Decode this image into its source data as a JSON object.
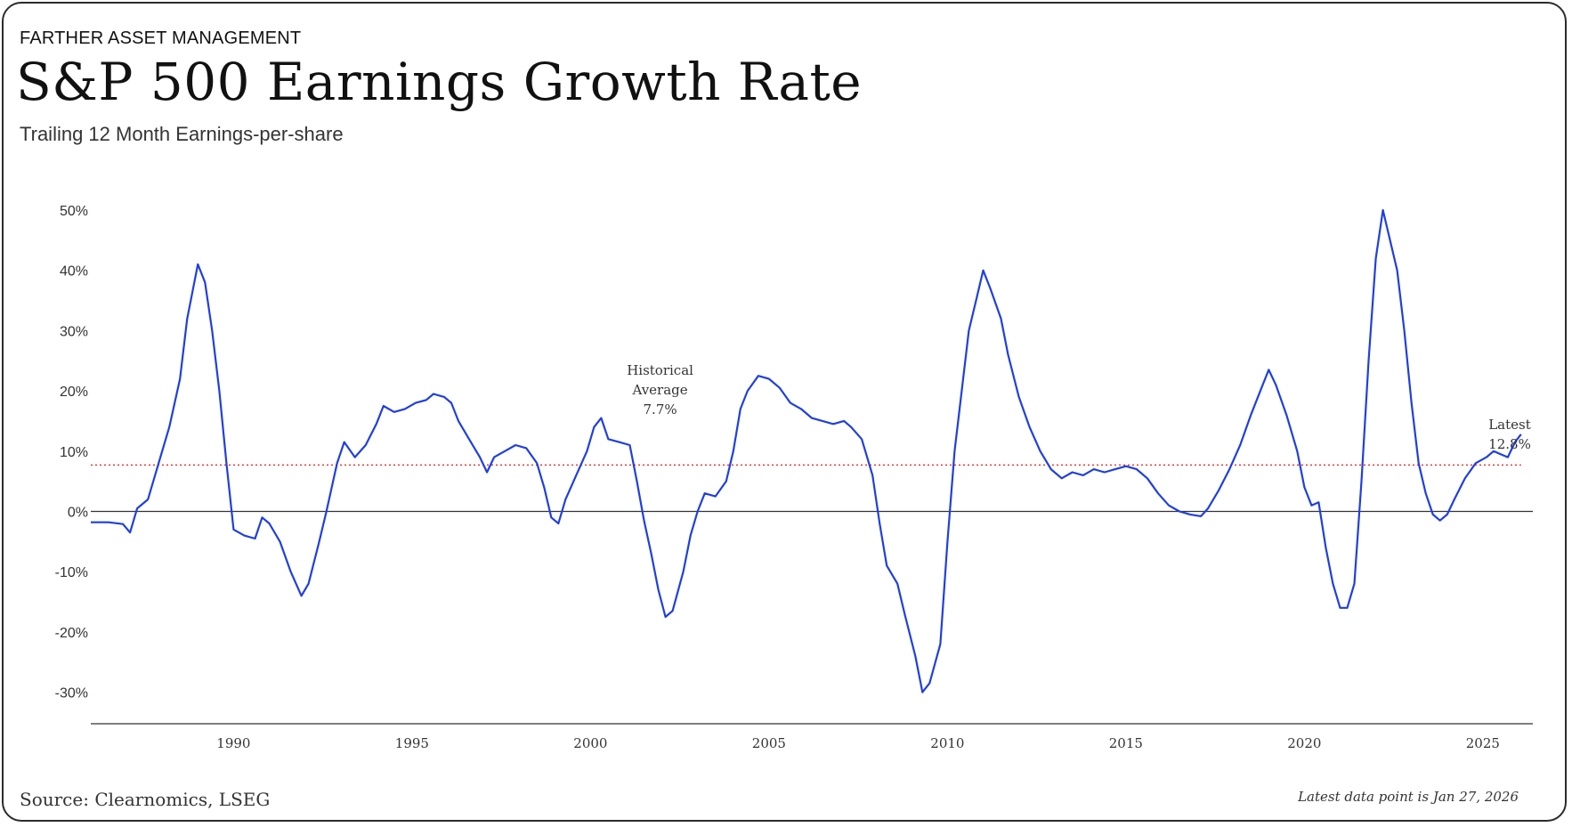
{
  "header": {
    "eyebrow": "FARTHER ASSET MANAGEMENT",
    "title": "S&P 500 Earnings Growth Rate",
    "subtitle": "Trailing 12 Month Earnings-per-share"
  },
  "footer": {
    "source": "Source: Clearnomics, LSEG",
    "latest_note": "Latest data point is Jan 27, 2026"
  },
  "colors": {
    "line": "#1f3fe0",
    "average_line": "#e53935",
    "zero_line": "#333333",
    "axis": "#333333"
  },
  "chart_data": {
    "type": "line",
    "title": "S&P 500 Earnings Growth Rate",
    "subtitle": "Trailing 12 Month Earnings-per-share",
    "xlabel": "",
    "ylabel": "",
    "xlim": [
      1986.0,
      2026.4
    ],
    "ylim": [
      -35,
      52
    ],
    "x_ticks": [
      1990,
      1995,
      2000,
      2005,
      2010,
      2015,
      2020,
      2025
    ],
    "x_tick_labels": [
      "1990",
      "1995",
      "2000",
      "2005",
      "2010",
      "2015",
      "2020",
      "2025"
    ],
    "y_ticks": [
      50,
      40,
      30,
      20,
      10,
      0,
      -10,
      -20,
      -30
    ],
    "y_tick_labels": [
      "50%",
      "40%",
      "30%",
      "20%",
      "10%",
      "0%",
      "-10%",
      "-20%",
      "-30%"
    ],
    "grid": false,
    "series": [
      {
        "name": "Trailing 12M EPS growth",
        "points": [
          [
            1986.0,
            -1.8
          ],
          [
            1986.5,
            -1.8
          ],
          [
            1986.9,
            -2.1
          ],
          [
            1987.1,
            -3.5
          ],
          [
            1987.3,
            0.5
          ],
          [
            1987.6,
            2.0
          ],
          [
            1987.9,
            8.0
          ],
          [
            1988.2,
            14.0
          ],
          [
            1988.5,
            22.0
          ],
          [
            1988.7,
            32.0
          ],
          [
            1988.9,
            38.0
          ],
          [
            1989.0,
            41.0
          ],
          [
            1989.2,
            38.0
          ],
          [
            1989.4,
            30.0
          ],
          [
            1989.6,
            20.0
          ],
          [
            1989.8,
            8.0
          ],
          [
            1990.0,
            -3.0
          ],
          [
            1990.3,
            -4.0
          ],
          [
            1990.6,
            -4.5
          ],
          [
            1990.8,
            -1.0
          ],
          [
            1991.0,
            -2.0
          ],
          [
            1991.3,
            -5.0
          ],
          [
            1991.6,
            -10.0
          ],
          [
            1991.9,
            -14.0
          ],
          [
            1992.1,
            -12.0
          ],
          [
            1992.4,
            -5.0
          ],
          [
            1992.6,
            0.0
          ],
          [
            1992.9,
            8.0
          ],
          [
            1993.1,
            11.5
          ],
          [
            1993.4,
            9.0
          ],
          [
            1993.7,
            11.0
          ],
          [
            1994.0,
            14.5
          ],
          [
            1994.2,
            17.5
          ],
          [
            1994.5,
            16.5
          ],
          [
            1994.8,
            17.0
          ],
          [
            1995.1,
            18.0
          ],
          [
            1995.4,
            18.5
          ],
          [
            1995.6,
            19.5
          ],
          [
            1995.9,
            19.0
          ],
          [
            1996.1,
            18.0
          ],
          [
            1996.3,
            15.0
          ],
          [
            1996.6,
            12.0
          ],
          [
            1996.9,
            9.0
          ],
          [
            1997.1,
            6.5
          ],
          [
            1997.3,
            9.0
          ],
          [
            1997.6,
            10.0
          ],
          [
            1997.9,
            11.0
          ],
          [
            1998.2,
            10.5
          ],
          [
            1998.5,
            8.0
          ],
          [
            1998.7,
            4.0
          ],
          [
            1998.9,
            -1.0
          ],
          [
            1999.1,
            -2.0
          ],
          [
            1999.3,
            2.0
          ],
          [
            1999.6,
            6.0
          ],
          [
            1999.9,
            10.0
          ],
          [
            2000.1,
            14.0
          ],
          [
            2000.3,
            15.5
          ],
          [
            2000.5,
            12.0
          ],
          [
            2000.8,
            11.5
          ],
          [
            2001.1,
            11.0
          ],
          [
            2001.3,
            5.0
          ],
          [
            2001.5,
            -1.5
          ],
          [
            2001.7,
            -7.0
          ],
          [
            2001.9,
            -13.0
          ],
          [
            2002.1,
            -17.5
          ],
          [
            2002.3,
            -16.5
          ],
          [
            2002.6,
            -10.0
          ],
          [
            2002.8,
            -4.0
          ],
          [
            2003.0,
            0.0
          ],
          [
            2003.2,
            3.0
          ],
          [
            2003.5,
            2.5
          ],
          [
            2003.8,
            5.0
          ],
          [
            2004.0,
            10.0
          ],
          [
            2004.2,
            17.0
          ],
          [
            2004.4,
            20.0
          ],
          [
            2004.7,
            22.5
          ],
          [
            2005.0,
            22.0
          ],
          [
            2005.3,
            20.5
          ],
          [
            2005.6,
            18.0
          ],
          [
            2005.9,
            17.0
          ],
          [
            2006.2,
            15.5
          ],
          [
            2006.5,
            15.0
          ],
          [
            2006.8,
            14.5
          ],
          [
            2007.1,
            15.0
          ],
          [
            2007.3,
            14.0
          ],
          [
            2007.6,
            12.0
          ],
          [
            2007.9,
            6.0
          ],
          [
            2008.1,
            -2.0
          ],
          [
            2008.3,
            -9.0
          ],
          [
            2008.6,
            -12.0
          ],
          [
            2008.8,
            -17.0
          ],
          [
            2009.1,
            -24.0
          ],
          [
            2009.3,
            -30.0
          ],
          [
            2009.5,
            -28.5
          ],
          [
            2009.8,
            -22.0
          ],
          [
            2010.0,
            -5.0
          ],
          [
            2010.2,
            10.0
          ],
          [
            2010.4,
            20.0
          ],
          [
            2010.6,
            30.0
          ],
          [
            2010.8,
            35.0
          ],
          [
            2011.0,
            40.0
          ],
          [
            2011.2,
            37.0
          ],
          [
            2011.5,
            32.0
          ],
          [
            2011.7,
            26.0
          ],
          [
            2012.0,
            19.0
          ],
          [
            2012.3,
            14.0
          ],
          [
            2012.6,
            10.0
          ],
          [
            2012.9,
            7.0
          ],
          [
            2013.2,
            5.5
          ],
          [
            2013.5,
            6.5
          ],
          [
            2013.8,
            6.0
          ],
          [
            2014.1,
            7.0
          ],
          [
            2014.4,
            6.5
          ],
          [
            2014.7,
            7.0
          ],
          [
            2015.0,
            7.5
          ],
          [
            2015.3,
            7.0
          ],
          [
            2015.6,
            5.5
          ],
          [
            2015.9,
            3.0
          ],
          [
            2016.2,
            1.0
          ],
          [
            2016.5,
            0.0
          ],
          [
            2016.8,
            -0.5
          ],
          [
            2017.1,
            -0.8
          ],
          [
            2017.3,
            0.5
          ],
          [
            2017.6,
            3.5
          ],
          [
            2017.9,
            7.0
          ],
          [
            2018.2,
            11.0
          ],
          [
            2018.5,
            16.0
          ],
          [
            2018.8,
            20.5
          ],
          [
            2019.0,
            23.5
          ],
          [
            2019.2,
            21.0
          ],
          [
            2019.5,
            16.0
          ],
          [
            2019.8,
            10.0
          ],
          [
            2020.0,
            4.0
          ],
          [
            2020.2,
            1.0
          ],
          [
            2020.4,
            1.5
          ],
          [
            2020.6,
            -6.0
          ],
          [
            2020.8,
            -12.0
          ],
          [
            2021.0,
            -16.0
          ],
          [
            2021.2,
            -16.0
          ],
          [
            2021.4,
            -12.0
          ],
          [
            2021.6,
            5.0
          ],
          [
            2021.8,
            25.0
          ],
          [
            2022.0,
            42.0
          ],
          [
            2022.2,
            50.0
          ],
          [
            2022.4,
            45.0
          ],
          [
            2022.6,
            40.0
          ],
          [
            2022.8,
            30.0
          ],
          [
            2023.0,
            18.0
          ],
          [
            2023.2,
            8.0
          ],
          [
            2023.4,
            3.0
          ],
          [
            2023.6,
            -0.5
          ],
          [
            2023.8,
            -1.5
          ],
          [
            2024.0,
            -0.5
          ],
          [
            2024.2,
            2.0
          ],
          [
            2024.5,
            5.5
          ],
          [
            2024.8,
            8.0
          ],
          [
            2025.1,
            9.0
          ],
          [
            2025.3,
            10.0
          ],
          [
            2025.5,
            9.5
          ],
          [
            2025.7,
            9.0
          ],
          [
            2025.9,
            11.5
          ],
          [
            2026.07,
            12.8
          ]
        ]
      }
    ],
    "historical_average": 7.7,
    "annotations": {
      "average_lines": [
        "Historical",
        "Average",
        "7.7%"
      ],
      "latest_lines": [
        "Latest",
        "12.8%"
      ],
      "latest_value": 12.8
    }
  }
}
